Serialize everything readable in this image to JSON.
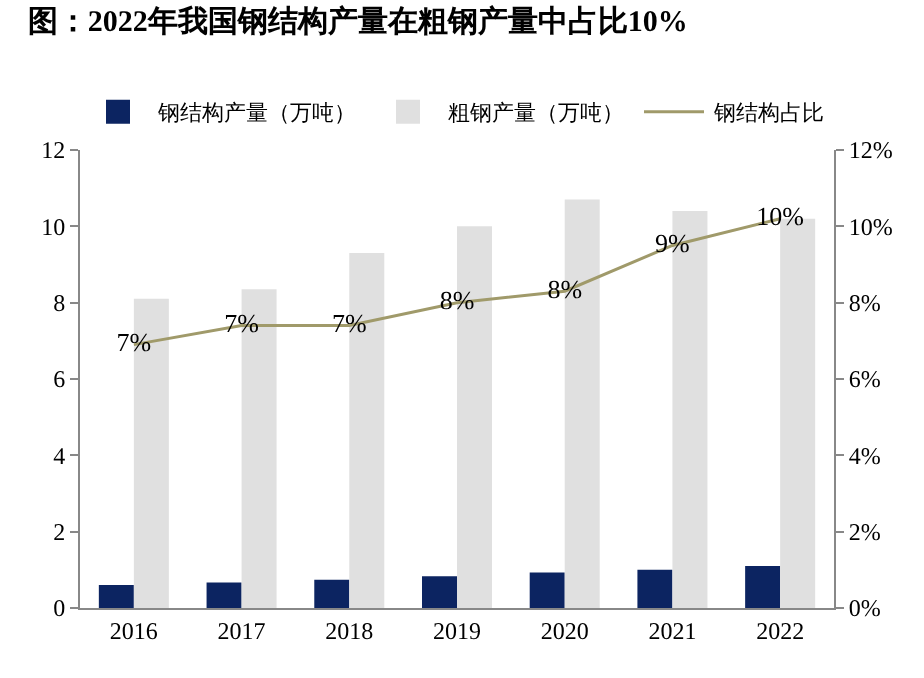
{
  "chart_data": {
    "type": "bar",
    "title": "图：2022年我国钢结构产量在粗钢产量中占比10%",
    "categories": [
      "2016",
      "2017",
      "2018",
      "2019",
      "2020",
      "2021",
      "2022"
    ],
    "series": [
      {
        "name": "钢结构产量（万吨）",
        "color": "#0c2461",
        "values": [
          0.6,
          0.67,
          0.74,
          0.83,
          0.93,
          1.0,
          1.1
        ]
      },
      {
        "name": "粗钢产量（万吨）",
        "color": "#e0e0e0",
        "values": [
          8.1,
          8.35,
          9.3,
          10.0,
          10.7,
          10.4,
          10.2
        ]
      },
      {
        "name": "钢结构占比",
        "type": "line",
        "axis": "y2",
        "color": "#a09a6a",
        "values": [
          6.9,
          7.4,
          7.4,
          8.0,
          8.3,
          9.5,
          10.2
        ],
        "value_labels": [
          "7%",
          "7%",
          "7%",
          "8%",
          "8%",
          "9%",
          "10%"
        ]
      }
    ],
    "ylim": [
      0,
      12
    ],
    "yticks": [
      0,
      2,
      4,
      6,
      8,
      10,
      12
    ],
    "y2lim": [
      0,
      12
    ],
    "y2ticks": [
      {
        "value": 0,
        "label": "0%"
      },
      {
        "value": 2,
        "label": "2%"
      },
      {
        "value": 4,
        "label": "4%"
      },
      {
        "value": 6,
        "label": "6%"
      },
      {
        "value": 8,
        "label": "8%"
      },
      {
        "value": 10,
        "label": "10%"
      },
      {
        "value": 12,
        "label": "12%"
      }
    ],
    "legend": "top",
    "grid": false
  }
}
